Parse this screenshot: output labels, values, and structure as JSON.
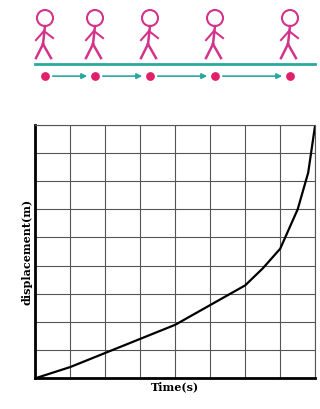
{
  "chart_data": {
    "type": "line",
    "x_label": "Time(s)",
    "y_label": "displacement(m)",
    "x": [
      0,
      1,
      2,
      3,
      4,
      5,
      6,
      6.5,
      7,
      7.5,
      7.8,
      8
    ],
    "values": [
      0,
      0.4,
      0.9,
      1.4,
      1.9,
      2.6,
      3.3,
      3.9,
      4.6,
      6.0,
      7.3,
      9
    ],
    "color": "#000000",
    "xlim": [
      0,
      8
    ],
    "ylim": [
      0,
      9
    ],
    "xticks": [
      0,
      1,
      2,
      3,
      4,
      5,
      6,
      7,
      8
    ],
    "yticks": [
      0,
      1,
      2,
      3,
      4,
      5,
      6,
      7,
      8,
      9
    ],
    "grid": true,
    "tick_labels": false
  }
}
